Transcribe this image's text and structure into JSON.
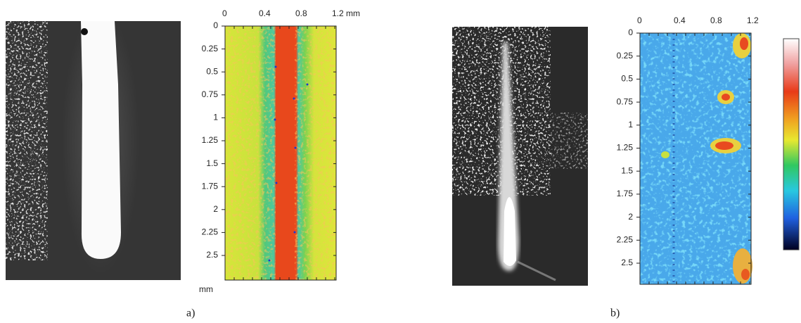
{
  "figure": {
    "panels": [
      {
        "caption": "a)",
        "top_axis": [
          "0",
          "0.4",
          "0.8",
          "1.2 mm"
        ],
        "left_axis": [
          "0",
          "0.25",
          "0.5",
          "0.75",
          "1",
          "1.25",
          "1.5",
          "1.75",
          "2",
          "2.25",
          "2.5"
        ],
        "left_axis_unit": "mm"
      },
      {
        "caption": "b)",
        "top_axis": [
          "0",
          "0.4",
          "0.8",
          "1.2"
        ],
        "left_axis": [
          "0",
          "0.25",
          "0.5",
          "0.75",
          "1",
          "1.25",
          "1.5",
          "1.75",
          "2",
          "2.25",
          "2.5"
        ]
      }
    ]
  }
}
